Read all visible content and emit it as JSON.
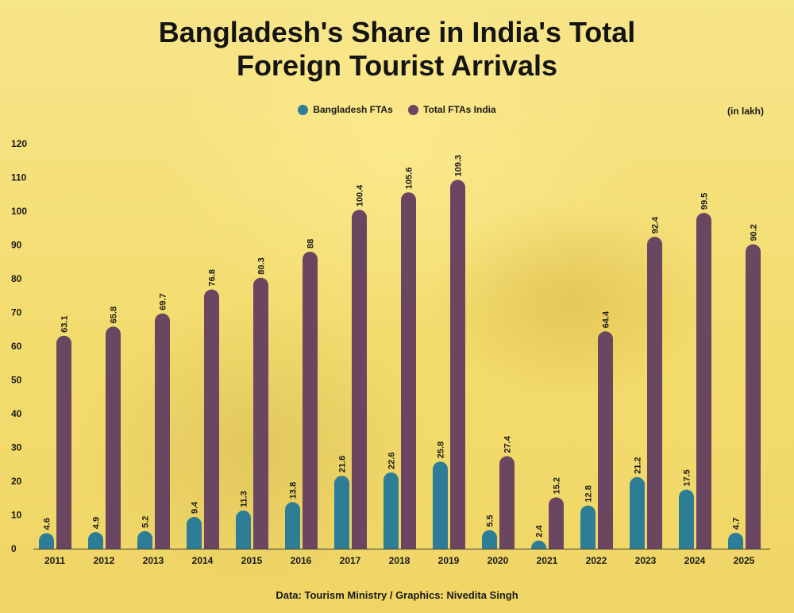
{
  "title_line1": "Bangladesh's Share in India's Total",
  "title_line2": "Foreign Tourist Arrivals",
  "unit_note": "(in lakh)",
  "source": "Data: Tourism Ministry / Graphics: Nivedita Singh",
  "colors": {
    "bangladesh": "#2e7d96",
    "total": "#6b4660",
    "background": "#f6e27a"
  },
  "legend": [
    {
      "label": "Bangladesh FTAs",
      "color": "#2e7d96"
    },
    {
      "label": "Total FTAs India",
      "color": "#6b4660"
    }
  ],
  "chart_data": {
    "type": "bar",
    "title": "Bangladesh's Share in India's Total Foreign Tourist Arrivals",
    "xlabel": "",
    "ylabel": "(in lakh)",
    "ylim": [
      0,
      120
    ],
    "yticks": [
      0,
      10,
      20,
      30,
      40,
      50,
      60,
      70,
      80,
      90,
      100,
      110,
      120
    ],
    "grid": false,
    "legend_position": "top-center",
    "categories": [
      "2011",
      "2012",
      "2013",
      "2014",
      "2015",
      "2016",
      "2017",
      "2018",
      "2019",
      "2020",
      "2021",
      "2022",
      "2023",
      "2024",
      "2025"
    ],
    "series": [
      {
        "name": "Bangladesh FTAs",
        "values": [
          4.6,
          4.9,
          5.2,
          9.4,
          11.3,
          13.8,
          21.6,
          22.6,
          25.8,
          5.5,
          2.4,
          12.8,
          21.2,
          17.5,
          4.7
        ],
        "labels": [
          "4.6",
          "4.9",
          "5.2",
          "9.4",
          "11.3",
          "13.8",
          "21.6",
          "22.6",
          "25.8",
          "5.5",
          "2.4",
          "12.8",
          "21.2",
          "17.5",
          "4.7"
        ]
      },
      {
        "name": "Total FTAs India",
        "values": [
          63.1,
          65.8,
          69.7,
          76.8,
          80.3,
          88,
          100.4,
          105.6,
          109.3,
          27.4,
          15.2,
          64.4,
          92.4,
          99.5,
          90.2
        ],
        "labels": [
          "63.1",
          "65.8",
          "69.7",
          "76.8",
          "80.3",
          "88",
          "100.4",
          "105.6",
          "109.3",
          "27.4",
          "15.2",
          "64.4",
          "92.4",
          "99.5",
          "90.2"
        ]
      }
    ]
  }
}
